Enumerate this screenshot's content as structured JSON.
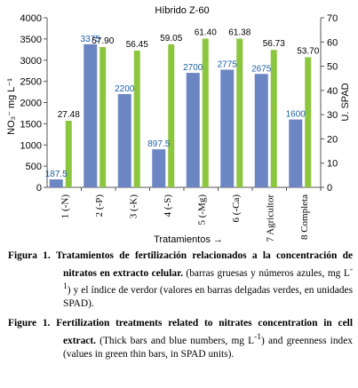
{
  "chart_data": {
    "type": "bar",
    "title": "Híbrido Z-60",
    "xlabel": "Tratamientos →",
    "ylabel_left": "NO₃⁻ mg L⁻¹",
    "ylabel_right": "U. SPAD",
    "ylim_left": [
      0,
      4000
    ],
    "ylim_right": [
      0,
      70
    ],
    "yticks_left": [
      "0",
      "500",
      "1000",
      "1500",
      "2000",
      "2500",
      "3000",
      "3500",
      "4000"
    ],
    "yticks_right": [
      "0",
      "10",
      "20",
      "30",
      "40",
      "50",
      "60",
      "70"
    ],
    "categories": [
      "1 (-N)",
      "2 (-P)",
      "3 (-K)",
      "4 (-S)",
      "5 (-Mg)",
      "6 (-Ca)",
      "7 Agricultor",
      "8 Completa"
    ],
    "series": [
      {
        "axis": "left",
        "values": [
          187.5,
          3375,
          2200,
          897.5,
          2700,
          2775,
          2675,
          1600
        ],
        "labels": [
          "187.5",
          "3375",
          "2200",
          "897.5",
          "2700",
          "2775",
          "2675",
          "1600"
        ],
        "color": "#6b86c2"
      },
      {
        "axis": "right",
        "values": [
          27.48,
          57.9,
          56.45,
          59.05,
          61.4,
          61.38,
          56.73,
          53.7
        ],
        "labels": [
          "27.48",
          "57.90",
          "56.45",
          "59.05",
          "61.40",
          "61.38",
          "56.73",
          "53.70"
        ],
        "color": "#8cc63f"
      }
    ],
    "label_color": "#1f5fa8"
  },
  "caption_es": {
    "label": "Figura 1.",
    "bold": "Tratamientos de fertilización relacionados a la concentración de nitratos en extracto celular.",
    "rest_1": " (barras gruesas y números azules, mg L",
    "sup": "-1",
    "rest_2": ") y el índice de verdor (valores en barras delgadas verdes, en unidades SPAD)."
  },
  "caption_en": {
    "label": "Figure 1.",
    "bold": "Fertilization treatments related to nitrates concentration in cell extract.",
    "rest_1": " (Thick bars and blue numbers, mg L",
    "sup": "-1",
    "rest_2": ") and greenness index (values in green thin bars, in SPAD units)."
  }
}
